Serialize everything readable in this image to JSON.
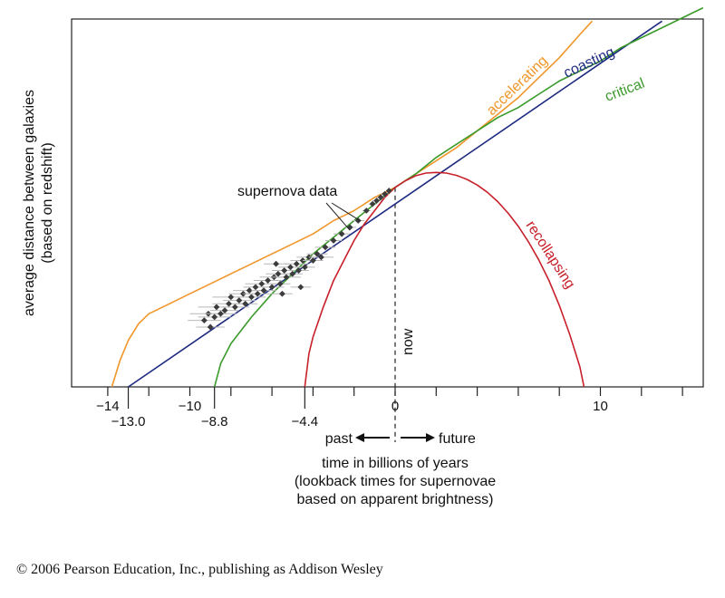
{
  "chart_data": {
    "type": "line",
    "title": "",
    "xlabel_lines": [
      "time in billions of years",
      "(lookback times for supernovae",
      "based on apparent brightness)"
    ],
    "ylabel_lines": [
      "average distance between galaxies",
      "(based on redshift)"
    ],
    "xlim": [
      -15.2,
      15
    ],
    "upper_ticks": [
      {
        "value": -14,
        "label": "−14"
      },
      {
        "value": -10,
        "label": "−10"
      },
      {
        "value": 0,
        "label": "0"
      },
      {
        "value": 10,
        "label": "10"
      }
    ],
    "minor_ticks": [
      -12,
      -8,
      -6,
      -4,
      -2,
      2,
      4,
      6,
      8,
      12,
      14
    ],
    "lower_ticks": [
      {
        "value": -13.0,
        "label": "−13.0"
      },
      {
        "value": -8.8,
        "label": "−8.8"
      },
      {
        "value": -4.4,
        "label": "−4.4"
      }
    ],
    "series": [
      {
        "name": "accelerating",
        "color": "#f0962a",
        "x": [
          -13.8,
          -13.4,
          -13,
          -12.5,
          -12,
          -11,
          -10,
          -9,
          -8,
          -7,
          -6,
          -5,
          -4,
          -3,
          -2,
          -1,
          0,
          1,
          2,
          3,
          4,
          5,
          6,
          7,
          8,
          9,
          9.6
        ],
        "y": [
          0.0,
          0.08,
          0.14,
          0.19,
          0.22,
          0.25,
          0.28,
          0.31,
          0.34,
          0.37,
          0.4,
          0.43,
          0.46,
          0.5,
          0.53,
          0.57,
          0.6,
          0.64,
          0.68,
          0.72,
          0.77,
          0.82,
          0.87,
          0.93,
          0.99,
          1.06,
          1.1
        ]
      },
      {
        "name": "coasting",
        "color": "#1c2a80",
        "x": [
          -13.0,
          13.0
        ],
        "y": [
          0.0,
          1.1
        ]
      },
      {
        "name": "critical",
        "color": "#3a9a2a",
        "x": [
          -8.8,
          -8.5,
          -8,
          -7.5,
          -7,
          -6,
          -5,
          -4,
          -3,
          -2,
          -1,
          0,
          1,
          2,
          3,
          4,
          5,
          6,
          7,
          8,
          9,
          10,
          11,
          12,
          13,
          14,
          15
        ],
        "y": [
          0.0,
          0.07,
          0.13,
          0.17,
          0.21,
          0.28,
          0.34,
          0.4,
          0.45,
          0.5,
          0.55,
          0.6,
          0.64,
          0.69,
          0.73,
          0.77,
          0.81,
          0.84,
          0.88,
          0.92,
          0.95,
          0.98,
          1.02,
          1.05,
          1.08,
          1.11,
          1.14
        ]
      },
      {
        "name": "recollapsing",
        "color": "#c8202a",
        "x": [
          -4.4,
          -4.2,
          -4,
          -3.5,
          -3,
          -2.5,
          -2,
          -1.5,
          -1,
          -0.5,
          0,
          0.5,
          1,
          1.5,
          2,
          2.5,
          3,
          3.5,
          4,
          4.5,
          5,
          5.5,
          6,
          6.5,
          7,
          7.5,
          8,
          8.5,
          9,
          9.2
        ],
        "y": [
          0.0,
          0.1,
          0.15,
          0.24,
          0.32,
          0.38,
          0.44,
          0.49,
          0.53,
          0.57,
          0.6,
          0.62,
          0.635,
          0.643,
          0.645,
          0.643,
          0.636,
          0.624,
          0.607,
          0.585,
          0.557,
          0.523,
          0.483,
          0.436,
          0.382,
          0.319,
          0.245,
          0.159,
          0.06,
          0.0
        ]
      }
    ],
    "supernova_points": [
      {
        "x": -9.3,
        "y": 0.2,
        "e": 0.8
      },
      {
        "x": -9.1,
        "y": 0.22,
        "e": 0.9
      },
      {
        "x": -9.0,
        "y": 0.18,
        "e": 0.7
      },
      {
        "x": -8.8,
        "y": 0.21,
        "e": 0.8
      },
      {
        "x": -8.7,
        "y": 0.24,
        "e": 0.9
      },
      {
        "x": -8.5,
        "y": 0.22,
        "e": 0.8
      },
      {
        "x": -8.3,
        "y": 0.23,
        "e": 0.7
      },
      {
        "x": -8.1,
        "y": 0.25,
        "e": 0.8
      },
      {
        "x": -8.0,
        "y": 0.27,
        "e": 0.9
      },
      {
        "x": -7.8,
        "y": 0.24,
        "e": 0.7
      },
      {
        "x": -7.6,
        "y": 0.26,
        "e": 0.8
      },
      {
        "x": -7.4,
        "y": 0.28,
        "e": 0.7
      },
      {
        "x": -7.3,
        "y": 0.25,
        "e": 0.6
      },
      {
        "x": -7.1,
        "y": 0.29,
        "e": 0.8
      },
      {
        "x": -7.0,
        "y": 0.27,
        "e": 0.7
      },
      {
        "x": -6.8,
        "y": 0.3,
        "e": 0.6
      },
      {
        "x": -6.7,
        "y": 0.28,
        "e": 0.7
      },
      {
        "x": -6.5,
        "y": 0.31,
        "e": 0.8
      },
      {
        "x": -6.4,
        "y": 0.29,
        "e": 0.6
      },
      {
        "x": -6.2,
        "y": 0.32,
        "e": 0.7
      },
      {
        "x": -6.0,
        "y": 0.3,
        "e": 0.6
      },
      {
        "x": -5.9,
        "y": 0.33,
        "e": 0.7
      },
      {
        "x": -5.7,
        "y": 0.34,
        "e": 0.6
      },
      {
        "x": -5.6,
        "y": 0.31,
        "e": 0.5
      },
      {
        "x": -5.4,
        "y": 0.35,
        "e": 0.6
      },
      {
        "x": -5.3,
        "y": 0.33,
        "e": 0.7
      },
      {
        "x": -5.1,
        "y": 0.36,
        "e": 0.6
      },
      {
        "x": -5.0,
        "y": 0.34,
        "e": 0.5
      },
      {
        "x": -4.8,
        "y": 0.37,
        "e": 0.6
      },
      {
        "x": -4.7,
        "y": 0.35,
        "e": 0.5
      },
      {
        "x": -4.5,
        "y": 0.38,
        "e": 0.6
      },
      {
        "x": -4.4,
        "y": 0.36,
        "e": 0.5
      },
      {
        "x": -4.2,
        "y": 0.39,
        "e": 0.6
      },
      {
        "x": -4.0,
        "y": 0.38,
        "e": 0.5
      },
      {
        "x": -3.8,
        "y": 0.4,
        "e": 0.5
      },
      {
        "x": -3.6,
        "y": 0.39,
        "e": 0.6
      },
      {
        "x": -3.4,
        "y": 0.42,
        "e": 0.5
      },
      {
        "x": -5.5,
        "y": 0.28,
        "e": 0.5
      },
      {
        "x": -4.6,
        "y": 0.3,
        "e": 0.5
      },
      {
        "x": -5.8,
        "y": 0.37,
        "e": 0.6
      },
      {
        "x": -3.0,
        "y": 0.44,
        "e": 0.4
      },
      {
        "x": -2.6,
        "y": 0.46,
        "e": 0.4
      },
      {
        "x": -2.2,
        "y": 0.48,
        "e": 0.3
      },
      {
        "x": -1.8,
        "y": 0.5,
        "e": 0.3
      },
      {
        "x": -1.4,
        "y": 0.53,
        "e": 0.2
      },
      {
        "x": -1.1,
        "y": 0.55,
        "e": 0.2
      },
      {
        "x": -0.9,
        "y": 0.56,
        "e": 0.2
      },
      {
        "x": -0.7,
        "y": 0.57,
        "e": 0.2
      },
      {
        "x": -0.5,
        "y": 0.58,
        "e": 0.2
      },
      {
        "x": -0.3,
        "y": 0.59,
        "e": 0.1
      }
    ],
    "annotations": {
      "supernova_label": "supernova data",
      "now_label": "now",
      "past_label": "past",
      "future_label": "future"
    }
  },
  "copyright": "© 2006 Pearson Education, Inc., publishing as Addison Wesley"
}
